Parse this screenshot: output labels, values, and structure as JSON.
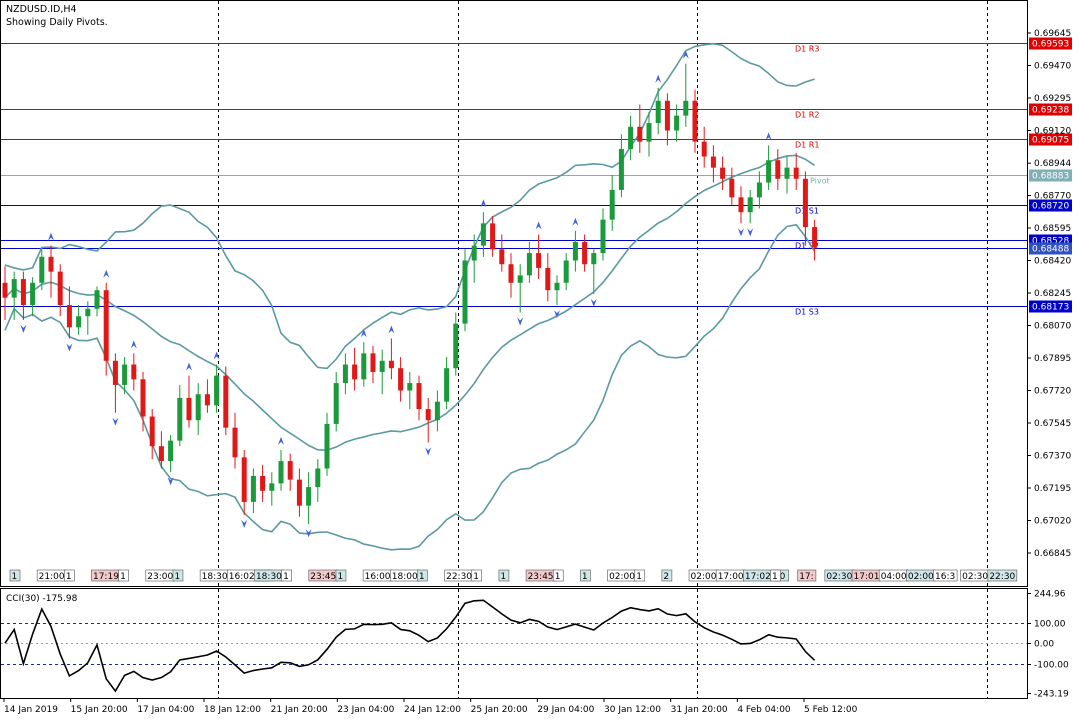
{
  "header": {
    "symbol": "NZDUSD.ID,H4",
    "subtitle": "Showing Daily Pivots."
  },
  "colors": {
    "bull": "#1a9a3a",
    "bear": "#e01818",
    "band": "#5b9aa0",
    "resistance": "#e00000",
    "support": "#0000cc",
    "pivot": "#7fb0b5",
    "arrow": "#4060e0",
    "cci": "#000000"
  },
  "price_axis": {
    "ticks": [
      "0.69645",
      "0.69470",
      "0.69295",
      "0.69120",
      "0.68944",
      "0.68770",
      "0.68595",
      "0.68420",
      "0.68245",
      "0.68070",
      "0.67895",
      "0.67720",
      "0.67545",
      "0.67370",
      "0.67195",
      "0.67020",
      "0.66845"
    ]
  },
  "pivots": [
    {
      "name": "D1 R3",
      "value": "0.69593",
      "type": "resistance"
    },
    {
      "name": "D1 R2",
      "value": "0.69238",
      "type": "resistance"
    },
    {
      "name": "D1 R1",
      "value": "0.69075",
      "type": "resistance"
    },
    {
      "name": "Pivot",
      "value": "0.68883",
      "type": "pivot"
    },
    {
      "name": "D1 S1",
      "value": "0.68720",
      "type": "support"
    },
    {
      "name": "D1 S2",
      "value": "0.68528",
      "type": "support"
    },
    {
      "name": "D1 S3",
      "value": "0.68173",
      "type": "support"
    }
  ],
  "current_price": "0.68488",
  "session_labels": [
    "1",
    "21:00",
    "1",
    "17:19",
    "1",
    "23:00",
    "1",
    "18:30",
    "16:02:00",
    "18:30",
    "1",
    "23:45",
    "1",
    "16:00",
    "18:00",
    "1",
    "22:30",
    "1",
    "1",
    "23:45",
    "1",
    "1",
    "02:00",
    "1",
    "2",
    "02:00",
    "17:00",
    "17:02:00",
    "1",
    "17:",
    "02:30",
    "17:01",
    "04:00",
    "02:00",
    "16:3",
    "02:30",
    "22:30"
  ],
  "time_axis": [
    "14 Jan 2019",
    "15 Jan 20:00",
    "17 Jan 04:00",
    "18 Jan 12:00",
    "21 Jan 20:00",
    "23 Jan 04:00",
    "24 Jan 12:00",
    "25 Jan 20:00",
    "29 Jan 04:00",
    "30 Jan 12:00",
    "31 Jan 20:00",
    "4 Feb 04:00",
    "5 Feb 12:00"
  ],
  "cci": {
    "label": "CCI(30) -175.98",
    "levels": [
      "244.96",
      "100.00",
      "0.00",
      "-100.00",
      "-243.19"
    ]
  },
  "chart_data": {
    "type": "candlestick",
    "candles": [
      {
        "o": 0.683,
        "h": 0.6839,
        "l": 0.681,
        "c": 0.6822
      },
      {
        "o": 0.6822,
        "h": 0.6836,
        "l": 0.681,
        "c": 0.6832
      },
      {
        "o": 0.6832,
        "h": 0.6836,
        "l": 0.681,
        "c": 0.6818
      },
      {
        "o": 0.6818,
        "h": 0.6833,
        "l": 0.6812,
        "c": 0.683
      },
      {
        "o": 0.683,
        "h": 0.6848,
        "l": 0.6826,
        "c": 0.6844
      },
      {
        "o": 0.6844,
        "h": 0.685,
        "l": 0.6822,
        "c": 0.6836
      },
      {
        "o": 0.6836,
        "h": 0.684,
        "l": 0.6812,
        "c": 0.6818
      },
      {
        "o": 0.6818,
        "h": 0.6828,
        "l": 0.68,
        "c": 0.6806
      },
      {
        "o": 0.6806,
        "h": 0.6818,
        "l": 0.6802,
        "c": 0.6812
      },
      {
        "o": 0.6812,
        "h": 0.682,
        "l": 0.6802,
        "c": 0.6816
      },
      {
        "o": 0.6816,
        "h": 0.6828,
        "l": 0.6812,
        "c": 0.6826
      },
      {
        "o": 0.6826,
        "h": 0.683,
        "l": 0.678,
        "c": 0.6788
      },
      {
        "o": 0.6788,
        "h": 0.6792,
        "l": 0.676,
        "c": 0.6775
      },
      {
        "o": 0.6775,
        "h": 0.679,
        "l": 0.677,
        "c": 0.6786
      },
      {
        "o": 0.6786,
        "h": 0.6792,
        "l": 0.6772,
        "c": 0.6778
      },
      {
        "o": 0.6778,
        "h": 0.6782,
        "l": 0.675,
        "c": 0.6758
      },
      {
        "o": 0.6758,
        "h": 0.6762,
        "l": 0.6735,
        "c": 0.6742
      },
      {
        "o": 0.6742,
        "h": 0.675,
        "l": 0.673,
        "c": 0.6734
      },
      {
        "o": 0.6734,
        "h": 0.6748,
        "l": 0.6728,
        "c": 0.6745
      },
      {
        "o": 0.6745,
        "h": 0.6775,
        "l": 0.6742,
        "c": 0.6768
      },
      {
        "o": 0.6768,
        "h": 0.678,
        "l": 0.6752,
        "c": 0.6756
      },
      {
        "o": 0.6756,
        "h": 0.6776,
        "l": 0.6748,
        "c": 0.677
      },
      {
        "o": 0.677,
        "h": 0.6778,
        "l": 0.676,
        "c": 0.6764
      },
      {
        "o": 0.6764,
        "h": 0.6786,
        "l": 0.676,
        "c": 0.678
      },
      {
        "o": 0.678,
        "h": 0.6785,
        "l": 0.6748,
        "c": 0.6752
      },
      {
        "o": 0.6752,
        "h": 0.676,
        "l": 0.673,
        "c": 0.6736
      },
      {
        "o": 0.6736,
        "h": 0.674,
        "l": 0.6705,
        "c": 0.6712
      },
      {
        "o": 0.6712,
        "h": 0.673,
        "l": 0.6706,
        "c": 0.6726
      },
      {
        "o": 0.6726,
        "h": 0.6732,
        "l": 0.6712,
        "c": 0.6718
      },
      {
        "o": 0.6718,
        "h": 0.6728,
        "l": 0.671,
        "c": 0.6722
      },
      {
        "o": 0.6722,
        "h": 0.674,
        "l": 0.6718,
        "c": 0.6734
      },
      {
        "o": 0.6734,
        "h": 0.6738,
        "l": 0.6718,
        "c": 0.6724
      },
      {
        "o": 0.6724,
        "h": 0.673,
        "l": 0.6704,
        "c": 0.671
      },
      {
        "o": 0.671,
        "h": 0.6728,
        "l": 0.67,
        "c": 0.672
      },
      {
        "o": 0.672,
        "h": 0.6735,
        "l": 0.6712,
        "c": 0.673
      },
      {
        "o": 0.673,
        "h": 0.676,
        "l": 0.6726,
        "c": 0.6754
      },
      {
        "o": 0.6754,
        "h": 0.6782,
        "l": 0.675,
        "c": 0.6776
      },
      {
        "o": 0.6776,
        "h": 0.6792,
        "l": 0.677,
        "c": 0.6786
      },
      {
        "o": 0.6786,
        "h": 0.6795,
        "l": 0.6772,
        "c": 0.6778
      },
      {
        "o": 0.6778,
        "h": 0.6798,
        "l": 0.6774,
        "c": 0.6792
      },
      {
        "o": 0.6792,
        "h": 0.6796,
        "l": 0.6776,
        "c": 0.6782
      },
      {
        "o": 0.6782,
        "h": 0.6794,
        "l": 0.677,
        "c": 0.6788
      },
      {
        "o": 0.6788,
        "h": 0.68,
        "l": 0.6778,
        "c": 0.6784
      },
      {
        "o": 0.6784,
        "h": 0.679,
        "l": 0.6766,
        "c": 0.6772
      },
      {
        "o": 0.6772,
        "h": 0.6782,
        "l": 0.6762,
        "c": 0.6776
      },
      {
        "o": 0.6776,
        "h": 0.678,
        "l": 0.6756,
        "c": 0.6762
      },
      {
        "o": 0.6762,
        "h": 0.6768,
        "l": 0.6744,
        "c": 0.6756
      },
      {
        "o": 0.6756,
        "h": 0.6772,
        "l": 0.675,
        "c": 0.6766
      },
      {
        "o": 0.6766,
        "h": 0.679,
        "l": 0.6762,
        "c": 0.6784
      },
      {
        "o": 0.6784,
        "h": 0.6814,
        "l": 0.678,
        "c": 0.6808
      },
      {
        "o": 0.6808,
        "h": 0.6848,
        "l": 0.6804,
        "c": 0.6842
      },
      {
        "o": 0.6842,
        "h": 0.6856,
        "l": 0.683,
        "c": 0.685
      },
      {
        "o": 0.685,
        "h": 0.6868,
        "l": 0.6844,
        "c": 0.6862
      },
      {
        "o": 0.6862,
        "h": 0.6866,
        "l": 0.6844,
        "c": 0.6848
      },
      {
        "o": 0.6848,
        "h": 0.6856,
        "l": 0.6836,
        "c": 0.684
      },
      {
        "o": 0.684,
        "h": 0.6846,
        "l": 0.6822,
        "c": 0.683
      },
      {
        "o": 0.683,
        "h": 0.684,
        "l": 0.6814,
        "c": 0.6834
      },
      {
        "o": 0.6834,
        "h": 0.6852,
        "l": 0.683,
        "c": 0.6846
      },
      {
        "o": 0.6846,
        "h": 0.6856,
        "l": 0.6832,
        "c": 0.6838
      },
      {
        "o": 0.6838,
        "h": 0.6846,
        "l": 0.682,
        "c": 0.6826
      },
      {
        "o": 0.6826,
        "h": 0.6834,
        "l": 0.6818,
        "c": 0.683
      },
      {
        "o": 0.683,
        "h": 0.6846,
        "l": 0.6826,
        "c": 0.6842
      },
      {
        "o": 0.6842,
        "h": 0.6858,
        "l": 0.6836,
        "c": 0.6852
      },
      {
        "o": 0.6852,
        "h": 0.6856,
        "l": 0.6836,
        "c": 0.684
      },
      {
        "o": 0.684,
        "h": 0.6848,
        "l": 0.6824,
        "c": 0.6846
      },
      {
        "o": 0.6846,
        "h": 0.687,
        "l": 0.6842,
        "c": 0.6864
      },
      {
        "o": 0.6864,
        "h": 0.6888,
        "l": 0.6858,
        "c": 0.688
      },
      {
        "o": 0.688,
        "h": 0.691,
        "l": 0.6876,
        "c": 0.6902
      },
      {
        "o": 0.6902,
        "h": 0.692,
        "l": 0.6896,
        "c": 0.6914
      },
      {
        "o": 0.6914,
        "h": 0.6926,
        "l": 0.69,
        "c": 0.6906
      },
      {
        "o": 0.6906,
        "h": 0.6922,
        "l": 0.6898,
        "c": 0.6916
      },
      {
        "o": 0.6916,
        "h": 0.6935,
        "l": 0.691,
        "c": 0.6928
      },
      {
        "o": 0.6928,
        "h": 0.6932,
        "l": 0.6904,
        "c": 0.6912
      },
      {
        "o": 0.6912,
        "h": 0.6926,
        "l": 0.6906,
        "c": 0.692
      },
      {
        "o": 0.692,
        "h": 0.6948,
        "l": 0.6914,
        "c": 0.6928
      },
      {
        "o": 0.6928,
        "h": 0.6934,
        "l": 0.69,
        "c": 0.6906
      },
      {
        "o": 0.6906,
        "h": 0.6914,
        "l": 0.6892,
        "c": 0.6898
      },
      {
        "o": 0.6898,
        "h": 0.6904,
        "l": 0.6884,
        "c": 0.6892
      },
      {
        "o": 0.6892,
        "h": 0.6898,
        "l": 0.688,
        "c": 0.6886
      },
      {
        "o": 0.6886,
        "h": 0.6892,
        "l": 0.6872,
        "c": 0.6876
      },
      {
        "o": 0.6876,
        "h": 0.6882,
        "l": 0.6862,
        "c": 0.6868
      },
      {
        "o": 0.6868,
        "h": 0.688,
        "l": 0.6862,
        "c": 0.6876
      },
      {
        "o": 0.6876,
        "h": 0.689,
        "l": 0.687,
        "c": 0.6884
      },
      {
        "o": 0.6884,
        "h": 0.6904,
        "l": 0.688,
        "c": 0.6896
      },
      {
        "o": 0.6896,
        "h": 0.6902,
        "l": 0.688,
        "c": 0.6886
      },
      {
        "o": 0.6886,
        "h": 0.6898,
        "l": 0.6878,
        "c": 0.6892
      },
      {
        "o": 0.6892,
        "h": 0.69,
        "l": 0.688,
        "c": 0.6886
      },
      {
        "o": 0.6886,
        "h": 0.689,
        "l": 0.685,
        "c": 0.686
      },
      {
        "o": 0.686,
        "h": 0.6864,
        "l": 0.6842,
        "c": 0.6849
      }
    ]
  }
}
